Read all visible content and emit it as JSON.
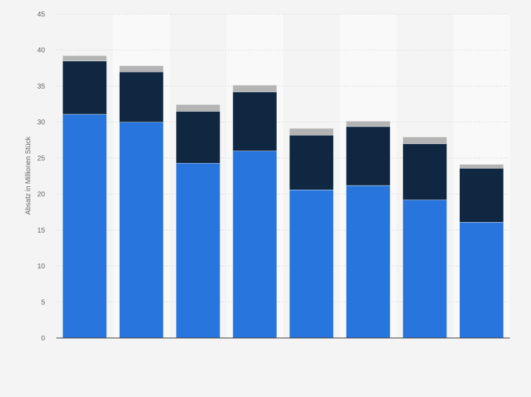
{
  "chart_data": {
    "type": "bar",
    "stacked": true,
    "categories": [
      "",
      "",
      "",
      "",
      "",
      "",
      "",
      ""
    ],
    "series": [
      {
        "color": "#2876dd",
        "values": [
          31.1,
          30.0,
          24.3,
          26.0,
          20.6,
          21.2,
          19.2,
          16.1
        ]
      },
      {
        "color": "#0f2740",
        "values": [
          7.4,
          7.0,
          7.2,
          8.2,
          7.6,
          8.2,
          7.8,
          7.5
        ]
      },
      {
        "color": "#b4b4b4",
        "values": [
          0.7,
          0.8,
          0.9,
          0.9,
          0.9,
          0.7,
          0.9,
          0.5
        ]
      }
    ],
    "ylabel": "Absatz in Millionen Stück",
    "ylim": [
      0,
      45
    ],
    "yticks": [
      "0",
      "5",
      "10",
      "15",
      "20",
      "25",
      "30",
      "35",
      "40",
      "45"
    ],
    "grid": true
  }
}
